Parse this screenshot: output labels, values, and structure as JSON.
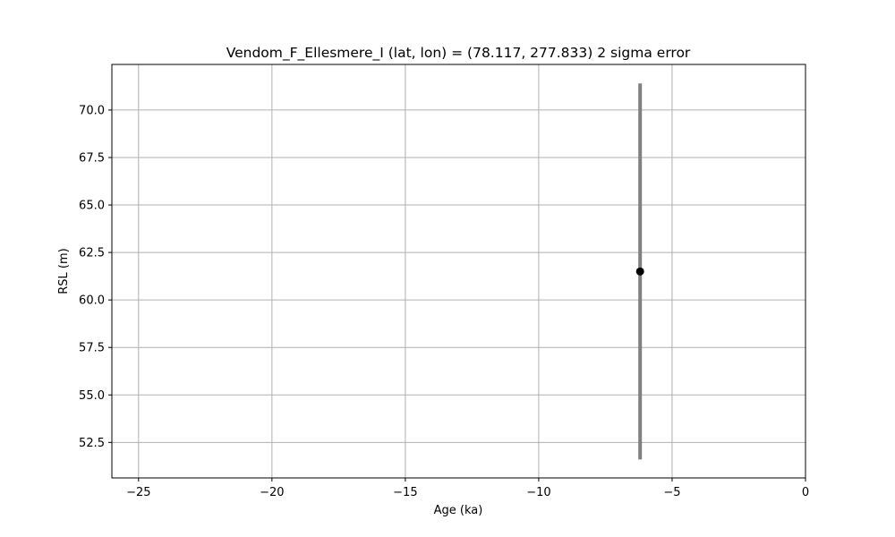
{
  "chart_data": {
    "type": "scatter",
    "title": "Vendom_F_Ellesmere_I (lat, lon) = (78.117, 277.833)  2 sigma error",
    "xlabel": "Age (ka)",
    "ylabel": "RSL (m)",
    "xlim": [
      -26,
      0
    ],
    "ylim": [
      50.63,
      72.4
    ],
    "xticks": [
      -25,
      -20,
      -15,
      -10,
      -5,
      0
    ],
    "xtick_labels": [
      "−25",
      "−20",
      "−15",
      "−10",
      "−5",
      "0"
    ],
    "yticks": [
      52.5,
      55.0,
      57.5,
      60.0,
      62.5,
      65.0,
      67.5,
      70.0
    ],
    "ytick_labels": [
      "52.5",
      "55.0",
      "57.5",
      "60.0",
      "62.5",
      "65.0",
      "67.5",
      "70.0"
    ],
    "grid": true,
    "points": [
      {
        "x": -6.2,
        "y": 61.5,
        "yerr_low": 51.6,
        "yerr_high": 71.4
      }
    ],
    "colors": {
      "point": "#000000",
      "errorbar": "#808080",
      "grid": "#b0b0b0",
      "axes": "#000000"
    }
  }
}
